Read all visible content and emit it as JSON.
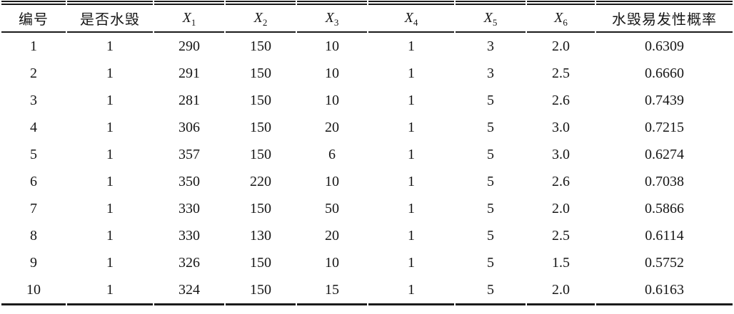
{
  "colors": {
    "background": "#ffffff",
    "text": "#161616",
    "rule": "#1a1a1a"
  },
  "table": {
    "headers": [
      {
        "key": "id",
        "label": "编号"
      },
      {
        "key": "is-damaged",
        "label": "是否水毁"
      },
      {
        "key": "x1",
        "label": "X",
        "sub": "1"
      },
      {
        "key": "x2",
        "label": "X",
        "sub": "2"
      },
      {
        "key": "x3",
        "label": "X",
        "sub": "3"
      },
      {
        "key": "x4",
        "label": "X",
        "sub": "4"
      },
      {
        "key": "x5",
        "label": "X",
        "sub": "5"
      },
      {
        "key": "x6",
        "label": "X",
        "sub": "6"
      },
      {
        "key": "probability",
        "label": "水毁易发性概率"
      }
    ],
    "rows": [
      [
        "1",
        "1",
        "290",
        "150",
        "10",
        "1",
        "3",
        "2.0",
        "0.6309"
      ],
      [
        "2",
        "1",
        "291",
        "150",
        "10",
        "1",
        "3",
        "2.5",
        "0.6660"
      ],
      [
        "3",
        "1",
        "281",
        "150",
        "10",
        "1",
        "5",
        "2.6",
        "0.7439"
      ],
      [
        "4",
        "1",
        "306",
        "150",
        "20",
        "1",
        "5",
        "3.0",
        "0.7215"
      ],
      [
        "5",
        "1",
        "357",
        "150",
        "6",
        "1",
        "5",
        "3.0",
        "0.6274"
      ],
      [
        "6",
        "1",
        "350",
        "220",
        "10",
        "1",
        "5",
        "2.6",
        "0.7038"
      ],
      [
        "7",
        "1",
        "330",
        "150",
        "50",
        "1",
        "5",
        "2.0",
        "0.5866"
      ],
      [
        "8",
        "1",
        "330",
        "130",
        "20",
        "1",
        "5",
        "2.5",
        "0.6114"
      ],
      [
        "9",
        "1",
        "326",
        "150",
        "10",
        "1",
        "5",
        "1.5",
        "0.5752"
      ],
      [
        "10",
        "1",
        "324",
        "150",
        "15",
        "1",
        "5",
        "2.0",
        "0.6163"
      ]
    ]
  }
}
